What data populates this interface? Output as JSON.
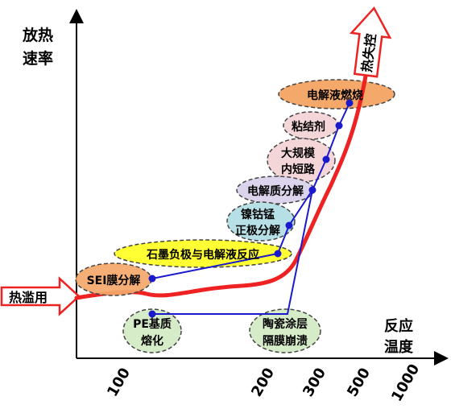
{
  "axes": {
    "y_label_line1": "放热",
    "y_label_line2": "速率",
    "x_label_line1": "反应",
    "x_label_line2": "温度",
    "x_ticks": [
      "100",
      "200",
      "300",
      "500",
      "1000"
    ]
  },
  "arrows": {
    "left_arrow_label": "热滥用",
    "top_arrow_label": "热失控"
  },
  "stages": {
    "sei": "SEI膜分解",
    "graphite": "石墨负极与电解液反应",
    "cathode_line1": "镍钴锰",
    "cathode_line2": "正极分解",
    "electrolyte_decomp": "电解质分解",
    "short_line1": "大规模",
    "short_line2": "内短路",
    "binder": "粘结剂",
    "combustion": "电解液燃烧",
    "pe_line1": "PE基质",
    "pe_line2": "熔化",
    "ceramic_line1": "陶瓷涂层",
    "ceramic_line2": "隔膜崩溃"
  },
  "colors": {
    "curve": "#ee2222",
    "connector": "#1a1acc",
    "orange": "#f4a86a",
    "yellow": "#ffff33",
    "teal": "#b6dfe6",
    "lavender": "#dcd3ec",
    "pink": "#f4d6d9",
    "green": "#d6ebc8"
  }
}
